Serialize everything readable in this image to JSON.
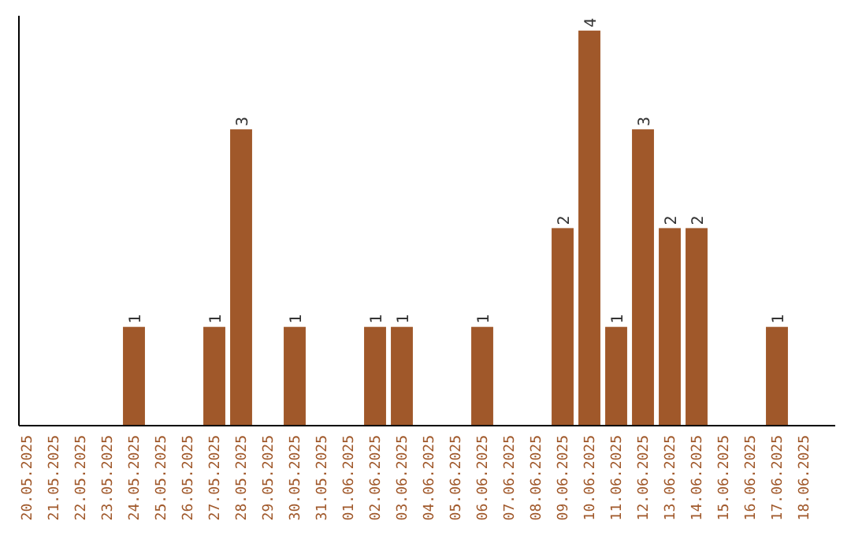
{
  "chart_data": {
    "type": "bar",
    "categories": [
      "20.05.2025",
      "21.05.2025",
      "22.05.2025",
      "23.05.2025",
      "24.05.2025",
      "25.05.2025",
      "26.05.2025",
      "27.05.2025",
      "28.05.2025",
      "29.05.2025",
      "30.05.2025",
      "31.05.2025",
      "01.06.2025",
      "02.06.2025",
      "03.06.2025",
      "04.06.2025",
      "05.06.2025",
      "06.06.2025",
      "07.06.2025",
      "08.06.2025",
      "09.06.2025",
      "10.06.2025",
      "11.06.2025",
      "12.06.2025",
      "13.06.2025",
      "14.06.2025",
      "15.06.2025",
      "16.06.2025",
      "17.06.2025",
      "18.06.2025"
    ],
    "values": [
      0,
      0,
      0,
      0,
      1,
      0,
      0,
      1,
      3,
      0,
      1,
      0,
      0,
      1,
      1,
      0,
      0,
      1,
      0,
      0,
      2,
      4,
      1,
      3,
      2,
      2,
      0,
      0,
      1,
      0
    ],
    "value_labels": [
      null,
      null,
      null,
      null,
      "1",
      null,
      null,
      "1",
      "3",
      null,
      "1",
      null,
      null,
      "1",
      "1",
      null,
      null,
      "1",
      null,
      null,
      "2",
      "4",
      "1",
      "3",
      "2",
      "2",
      null,
      null,
      "1",
      null
    ],
    "color": "#a0582a",
    "ylim": [
      0,
      4.15
    ],
    "tick_labels": "x"
  }
}
